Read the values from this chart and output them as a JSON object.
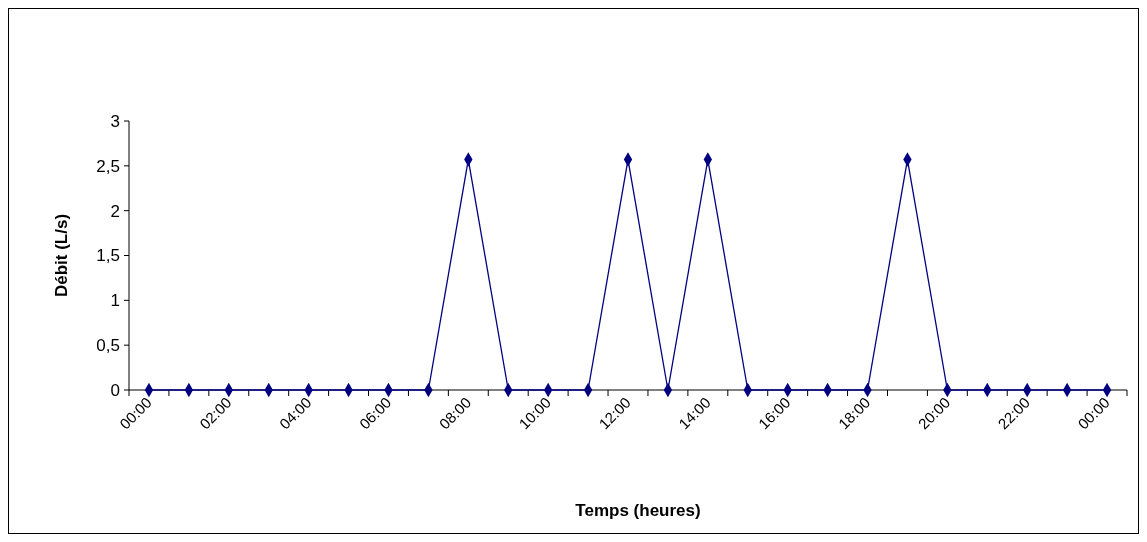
{
  "chart_data": {
    "type": "line",
    "xlabel": "Temps (heures)",
    "ylabel": "Débit (L/s)",
    "categories": [
      "00:00",
      null,
      "02:00",
      null,
      "04:00",
      null,
      "06:00",
      null,
      "08:00",
      null,
      "10:00",
      null,
      "12:00",
      null,
      "14:00",
      null,
      "16:00",
      null,
      "18:00",
      null,
      "20:00",
      null,
      "22:00",
      null,
      "00:00"
    ],
    "series": [
      {
        "color": "#000080",
        "values": [
          0,
          0,
          0,
          0,
          0,
          0,
          0,
          0,
          2.57,
          0,
          0,
          0,
          2.57,
          0,
          2.57,
          0,
          0,
          0,
          0,
          2.57,
          0,
          0,
          0,
          0,
          0
        ]
      }
    ],
    "ylim": [
      0,
      3
    ],
    "yticks": [
      0,
      {
        "value": 0.5,
        "label": "0,5"
      },
      1,
      {
        "value": 1.5,
        "label": "1,5"
      },
      2,
      {
        "value": 2.5,
        "label": "2,5"
      },
      3
    ],
    "grid": false,
    "marker": "diamond",
    "line_style": "solid"
  }
}
